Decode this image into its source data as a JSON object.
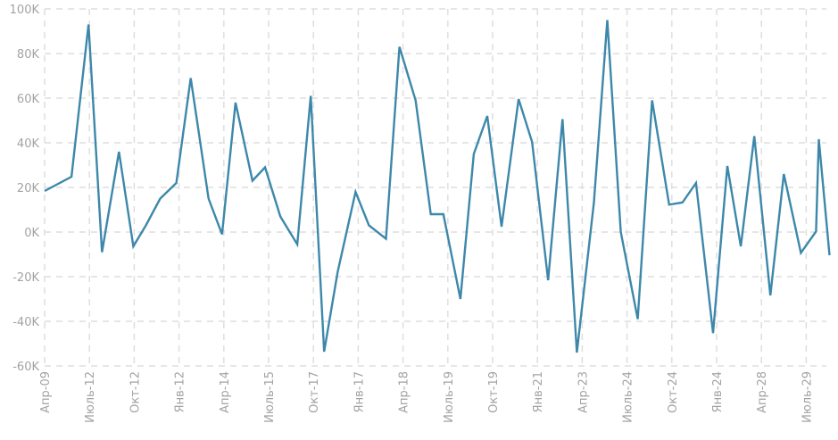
{
  "chart_data": {
    "type": "line",
    "title": "",
    "xlabel": "",
    "ylabel": "",
    "ylim": [
      -60000,
      100000
    ],
    "y_ticks": [
      -60000,
      -40000,
      -20000,
      0,
      20000,
      40000,
      60000,
      80000,
      100000
    ],
    "y_tick_labels": [
      "-60K",
      "-40K",
      "-20K",
      "0K",
      "20K",
      "40K",
      "60K",
      "80K",
      "100K"
    ],
    "x_tick_labels": [
      "Апр-09",
      "Июль-12",
      "Окт-12",
      "Янв-12",
      "Апр-14",
      "Июль-15",
      "Окт-17",
      "Янв-17",
      "Апр-18",
      "Июль-19",
      "Окт-19",
      "Янв-21",
      "Апр-23",
      "Июль-24",
      "Окт-24",
      "Янв-24",
      "Апр-28",
      "Июль-29"
    ],
    "x_note": "x values are positions in category-tick units (0 = first tick label)",
    "xlim": [
      0,
      17.5
    ],
    "grid": true,
    "line_color": "#3d88aa",
    "series": [
      {
        "name": "value",
        "x": [
          0,
          0.6,
          0.98,
          1.28,
          1.66,
          1.98,
          2.26,
          2.58,
          2.94,
          3.26,
          3.66,
          3.96,
          4.26,
          4.64,
          4.92,
          5.26,
          5.64,
          5.94,
          6.24,
          6.54,
          6.94,
          7.24,
          7.62,
          7.92,
          8.28,
          8.62,
          8.9,
          9.28,
          9.58,
          9.88,
          10.2,
          10.58,
          10.88,
          11.24,
          11.56,
          11.88,
          12.26,
          12.56,
          12.86,
          13.24,
          13.56,
          13.94,
          14.24,
          14.54,
          14.92,
          15.24,
          15.54,
          15.84,
          16.2,
          16.5,
          16.88,
          17.22,
          17.28,
          17.52
        ],
        "y": [
          18400,
          24800,
          93000,
          -9000,
          36000,
          -6400,
          3000,
          15000,
          22000,
          69000,
          15000,
          -1000,
          58000,
          23000,
          29000,
          7000,
          -5500,
          61000,
          -53600,
          -18000,
          18000,
          3000,
          -3000,
          83000,
          59000,
          8000,
          8000,
          -30000,
          35000,
          52000,
          2400,
          59600,
          40400,
          -21600,
          50600,
          -54000,
          13300,
          95000,
          0,
          -39000,
          59000,
          12300,
          13300,
          22000,
          -45300,
          29600,
          -6400,
          43000,
          -28400,
          26000,
          -9300,
          300,
          41600,
          -10400
        ]
      }
    ]
  }
}
